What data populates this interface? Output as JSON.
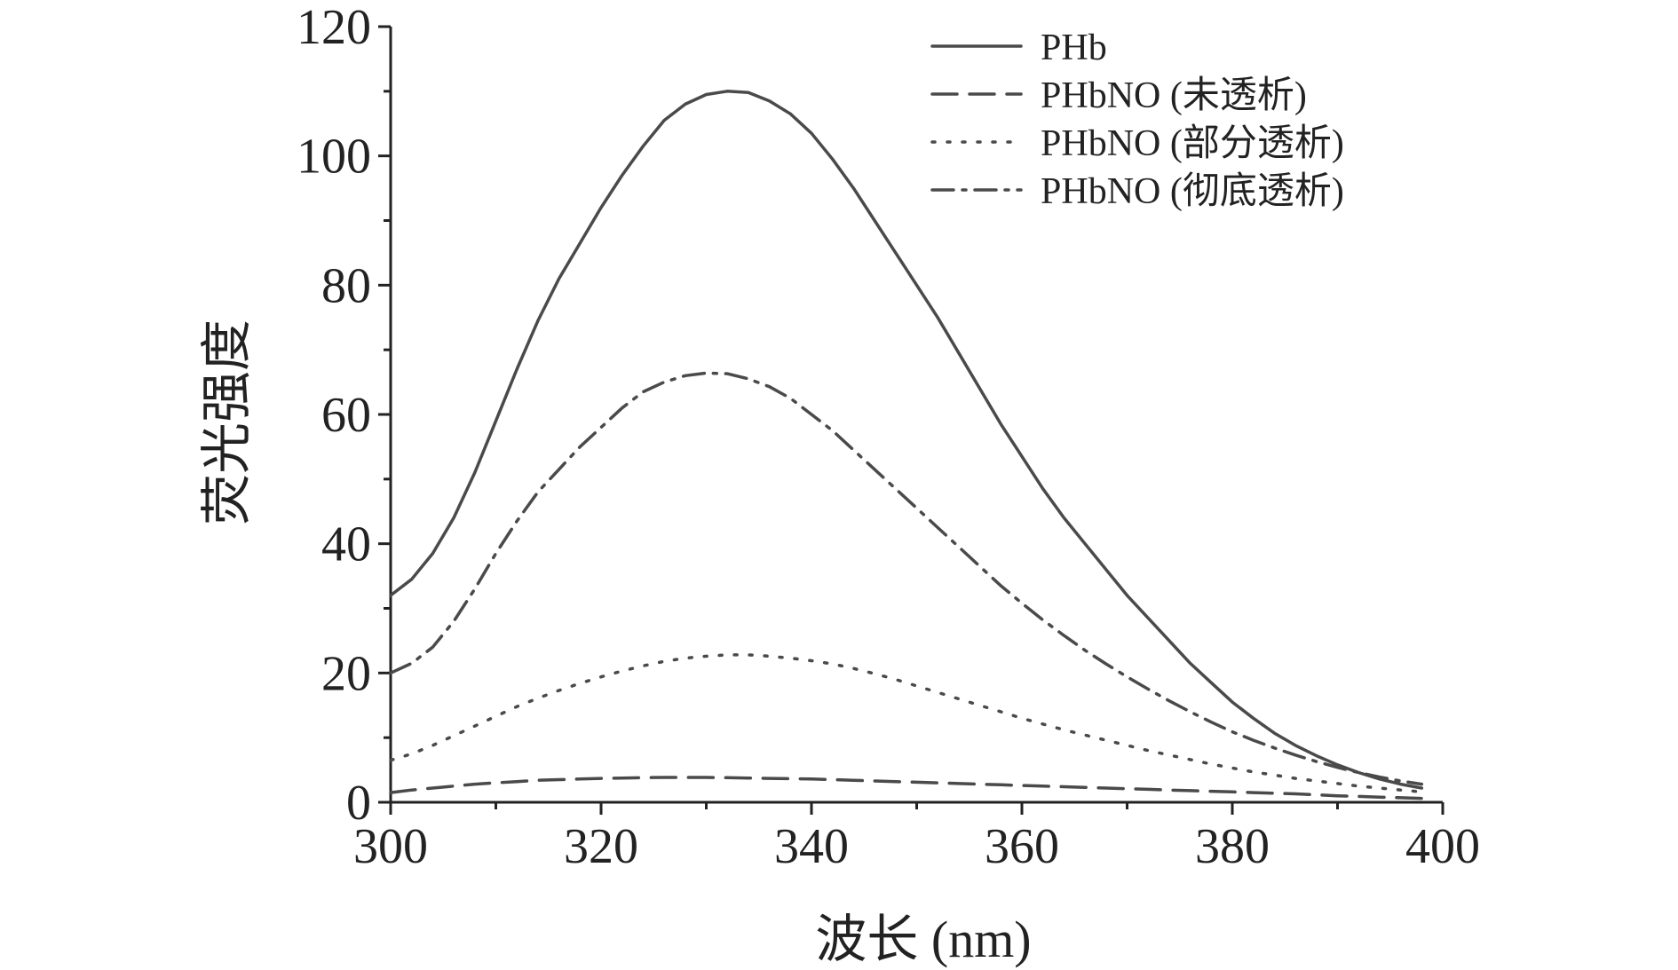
{
  "chart_data": {
    "type": "line",
    "title": "",
    "xlabel": "波长 (nm)",
    "ylabel": "荧光强度",
    "xlim": [
      300,
      400
    ],
    "ylim": [
      0,
      120
    ],
    "xticks": [
      300,
      320,
      340,
      360,
      380,
      400
    ],
    "yticks": [
      0,
      20,
      40,
      60,
      80,
      100,
      120
    ],
    "grid": false,
    "legend_position": "top-right",
    "line_color": "#4a4a4a",
    "x": [
      300,
      302,
      304,
      306,
      308,
      310,
      312,
      314,
      316,
      318,
      320,
      322,
      324,
      326,
      328,
      330,
      332,
      334,
      336,
      338,
      340,
      342,
      344,
      346,
      348,
      350,
      352,
      354,
      356,
      358,
      360,
      362,
      364,
      366,
      368,
      370,
      372,
      374,
      376,
      378,
      380,
      382,
      384,
      386,
      388,
      390,
      392,
      394,
      396,
      398
    ],
    "series": [
      {
        "name": "PHb",
        "dash": "solid",
        "values": [
          32,
          34.5,
          38.5,
          44,
          51,
          59,
          67,
          74.5,
          81,
          86.5,
          92,
          97,
          101.5,
          105.5,
          108,
          109.5,
          110,
          109.8,
          108.5,
          106.5,
          103.5,
          99.5,
          95,
          90,
          85,
          80,
          75,
          69.5,
          64,
          58.5,
          53.5,
          48.5,
          44,
          40,
          36,
          32,
          28.5,
          25,
          21.5,
          18.5,
          15.5,
          13,
          10.7,
          8.8,
          7.2,
          5.8,
          4.6,
          3.6,
          2.8,
          2.2
        ]
      },
      {
        "name": "PHbNO (未透析)",
        "dash": "dashed",
        "values": [
          1.5,
          1.9,
          2.2,
          2.5,
          2.8,
          3.0,
          3.2,
          3.4,
          3.5,
          3.6,
          3.7,
          3.75,
          3.8,
          3.85,
          3.85,
          3.85,
          3.8,
          3.75,
          3.7,
          3.65,
          3.6,
          3.5,
          3.4,
          3.3,
          3.2,
          3.1,
          3.0,
          2.9,
          2.8,
          2.7,
          2.6,
          2.5,
          2.4,
          2.3,
          2.2,
          2.1,
          2.0,
          1.9,
          1.8,
          1.7,
          1.6,
          1.5,
          1.4,
          1.3,
          1.15,
          1.0,
          0.9,
          0.8,
          0.7,
          0.6
        ]
      },
      {
        "name": "PHbNO (部分透析)",
        "dash": "dotted",
        "values": [
          6.5,
          7.5,
          8.8,
          10.3,
          11.8,
          13.3,
          14.8,
          16.1,
          17.3,
          18.4,
          19.4,
          20.3,
          21.1,
          21.8,
          22.3,
          22.6,
          22.8,
          22.8,
          22.6,
          22.3,
          21.9,
          21.4,
          20.7,
          19.9,
          19.0,
          18.0,
          17.0,
          16.0,
          15.0,
          14.0,
          13.0,
          12.1,
          11.2,
          10.4,
          9.6,
          8.8,
          8.0,
          7.3,
          6.6,
          5.9,
          5.3,
          4.7,
          4.2,
          3.7,
          3.3,
          2.9,
          2.5,
          2.2,
          1.9,
          1.6
        ]
      },
      {
        "name": "PHbNO (彻底透析)",
        "dash": "dashdot",
        "values": [
          20,
          21.5,
          24,
          28,
          33,
          38.5,
          43.5,
          48,
          51.5,
          55,
          58,
          61,
          63.5,
          65,
          66,
          66.4,
          66.3,
          65.5,
          64.3,
          62.5,
          60,
          57.5,
          54.5,
          51.5,
          48.5,
          45.5,
          42.5,
          39.5,
          36.5,
          33.5,
          30.8,
          28.2,
          25.8,
          23.5,
          21.4,
          19.4,
          17.5,
          15.7,
          14.0,
          12.4,
          10.9,
          9.6,
          8.4,
          7.3,
          6.3,
          5.4,
          4.6,
          3.9,
          3.3,
          2.8
        ]
      }
    ]
  }
}
